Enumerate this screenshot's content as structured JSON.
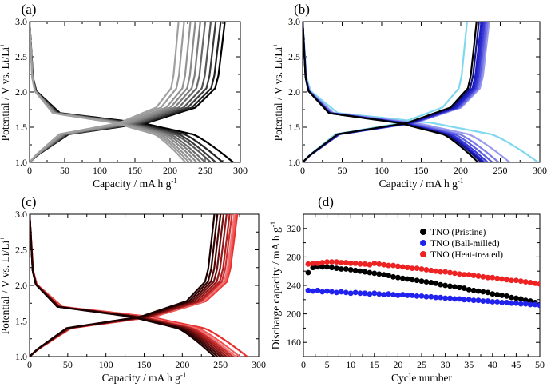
{
  "figure": {
    "panel_labels": [
      "(a)",
      "(b)",
      "(c)",
      "(d)"
    ]
  },
  "chart_data": [
    {
      "panel": "(a)",
      "type": "line",
      "xlabel": "Capacity / mA h g",
      "xlabel_sup": "-1",
      "ylabel": "Potential / V vs. Li/Li",
      "ylabel_sup": "+",
      "xlim": [
        0,
        300
      ],
      "ylim": [
        1.0,
        3.0
      ],
      "xticks": [
        "0",
        "50",
        "100",
        "150",
        "200",
        "250",
        "300"
      ],
      "yticks": [
        "1.0",
        "1.5",
        "2.0",
        "2.5",
        "3.0"
      ],
      "line_colors": [
        "#000000",
        "#222222",
        "#3a3a3a",
        "#555555",
        "#6a6a6a",
        "#7c7c7c",
        "#8a8a8a",
        "#939393",
        "#9b9b9b",
        "#a0a0a0"
      ],
      "discharge_end_capacity": [
        290,
        275,
        265,
        258,
        250,
        244,
        238,
        232,
        227,
        222
      ],
      "charge_end_capacity": [
        278,
        272,
        265,
        258,
        250,
        243,
        236,
        229,
        220,
        212
      ]
    },
    {
      "panel": "(b)",
      "type": "line",
      "xlabel": "Capacity / mA h g",
      "xlabel_sup": "-1",
      "ylabel": "Potential / V vs. Li/Li",
      "ylabel_sup": "+",
      "xlim": [
        0,
        300
      ],
      "ylim": [
        1.0,
        3.0
      ],
      "xticks": [
        "0",
        "50",
        "100",
        "150",
        "200",
        "250",
        "300"
      ],
      "yticks": [
        "1.0",
        "1.5",
        "2.0",
        "2.5",
        "3.0"
      ],
      "line_colors": [
        "#80d8f0",
        "#9a9aee",
        "#7a7ae8",
        "#5a5ade",
        "#3a3ad6",
        "#2a2acc",
        "#1c1cc4",
        "#141480",
        "#000000"
      ],
      "discharge_end_capacity": [
        298,
        262,
        248,
        240,
        234,
        230,
        228,
        226,
        222
      ],
      "charge_end_capacity": [
        208,
        236,
        234,
        232,
        230,
        228,
        226,
        223,
        220
      ]
    },
    {
      "panel": "(c)",
      "type": "line",
      "xlabel": "Capacity / mA h g",
      "xlabel_sup": "-1",
      "ylabel": "Potential / V vs. Li/Li",
      "ylabel_sup": "+",
      "xlim": [
        0,
        300
      ],
      "ylim": [
        1.0,
        3.0
      ],
      "xticks": [
        "0",
        "50",
        "100",
        "150",
        "200",
        "250",
        "300"
      ],
      "yticks": [
        "1.0",
        "1.5",
        "2.0",
        "2.5",
        "3.0"
      ],
      "line_colors": [
        "#e83030",
        "#f05858",
        "#f07878",
        "#d03030",
        "#b02020",
        "#901818",
        "#701010",
        "#500808",
        "#300404",
        "#1a0000"
      ],
      "discharge_end_capacity": [
        285,
        275,
        270,
        266,
        262,
        258,
        254,
        250,
        246,
        242
      ],
      "charge_end_capacity": [
        272,
        270,
        268,
        265,
        262,
        258,
        254,
        250,
        246,
        242
      ]
    },
    {
      "panel": "(d)",
      "type": "scatter",
      "xlabel": "Cycle number",
      "ylabel": "Discharge capacity / mA h g",
      "ylabel_sup": "-1",
      "xlim": [
        0,
        50
      ],
      "ylim": [
        140,
        340
      ],
      "xticks": [
        "0",
        "5",
        "10",
        "15",
        "20",
        "25",
        "30",
        "35",
        "40",
        "45",
        "50"
      ],
      "yticks": [
        "160",
        "200",
        "240",
        "280",
        "320"
      ],
      "legend": {
        "location": "top-right"
      },
      "series": [
        {
          "name": "TNO (Pristine)",
          "color": "#000000",
          "values": [
            258,
            265,
            266,
            266,
            266,
            265,
            264,
            263,
            263,
            262,
            261,
            260,
            259,
            258,
            257,
            256,
            255,
            254,
            252,
            251,
            250,
            249,
            248,
            247,
            246,
            245,
            244,
            243,
            241,
            240,
            239,
            238,
            237,
            236,
            234,
            233,
            232,
            231,
            230,
            228,
            227,
            226,
            225,
            223,
            222,
            221,
            219,
            218,
            216,
            213
          ]
        },
        {
          "name": "TNO (Ball-milled)",
          "color": "#2222ee",
          "values": [
            233,
            232,
            233,
            231,
            232,
            231,
            230,
            231,
            230,
            229,
            230,
            229,
            229,
            228,
            229,
            228,
            227,
            228,
            227,
            226,
            227,
            226,
            226,
            225,
            225,
            224,
            224,
            223,
            223,
            222,
            222,
            221,
            221,
            220,
            220,
            219,
            219,
            218,
            218,
            217,
            217,
            216,
            216,
            215,
            215,
            214,
            214,
            213,
            213,
            212
          ]
        },
        {
          "name": "TNO (Heat-treated)",
          "color": "#ee2222",
          "values": [
            270,
            271,
            271,
            272,
            273,
            273,
            273,
            272,
            272,
            271,
            271,
            270,
            270,
            269,
            271,
            270,
            269,
            268,
            268,
            267,
            266,
            265,
            264,
            264,
            263,
            262,
            261,
            260,
            259,
            259,
            258,
            257,
            256,
            255,
            255,
            254,
            253,
            252,
            251,
            251,
            250,
            249,
            248,
            247,
            247,
            246,
            245,
            244,
            243,
            242
          ]
        }
      ]
    }
  ]
}
